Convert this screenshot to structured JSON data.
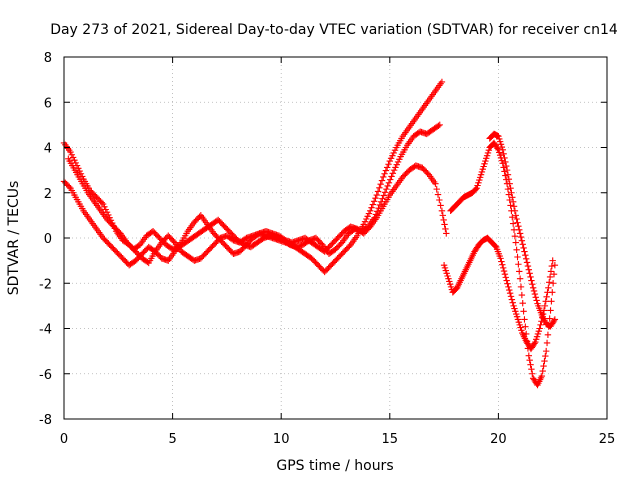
{
  "chart_data": {
    "type": "scatter",
    "title": "Day 273 of 2021, Sidereal Day-to-day VTEC variation (SDTVAR) for receiver cn14",
    "xlabel": "GPS time / hours",
    "ylabel": "SDTVAR / TECUs",
    "xlim": [
      0,
      25
    ],
    "ylim": [
      -8,
      8
    ],
    "xticks": [
      0,
      5,
      10,
      15,
      20,
      25
    ],
    "yticks": [
      -8,
      -6,
      -4,
      -2,
      0,
      2,
      4,
      6,
      8
    ],
    "xtick_labels": [
      "0",
      "5",
      "10",
      "15",
      "20",
      "25"
    ],
    "ytick_labels": [
      "-8",
      "-6",
      "-4",
      "-2",
      "0",
      "2",
      "4",
      "6",
      "8"
    ],
    "grid": true,
    "marker": "+",
    "color": "#ff0000",
    "series": [
      {
        "x": [
          0.0,
          0.3,
          0.6,
          0.9,
          1.2,
          1.5,
          1.8,
          2.1,
          2.4,
          2.7,
          3.0,
          3.3,
          3.6,
          3.9,
          4.2,
          4.5,
          4.8,
          5.1,
          5.4,
          5.7,
          6.0,
          6.3,
          6.6,
          6.9,
          7.2,
          7.5,
          7.8,
          8.1,
          8.4,
          8.7,
          9.0,
          9.3,
          9.6,
          9.9,
          10.2,
          10.5,
          10.8,
          11.1,
          11.4,
          11.7,
          12.0,
          12.3,
          12.6,
          12.9,
          13.2,
          13.5,
          13.8,
          14.1,
          14.4,
          14.7,
          15.0,
          15.3,
          15.6,
          15.9,
          16.2,
          16.5,
          16.8,
          17.1,
          17.4
        ],
        "y": [
          4.2,
          3.8,
          3.2,
          2.6,
          2.1,
          1.8,
          1.5,
          0.9,
          0.3,
          -0.1,
          -0.3,
          -0.6,
          -0.9,
          -1.1,
          -0.6,
          -0.2,
          0.1,
          -0.2,
          -0.6,
          -0.8,
          -1.0,
          -0.9,
          -0.6,
          -0.3,
          0.0,
          0.1,
          -0.1,
          -0.2,
          0.0,
          0.1,
          0.2,
          0.1,
          0.0,
          -0.1,
          -0.2,
          -0.3,
          -0.5,
          -0.7,
          -0.9,
          -1.2,
          -1.5,
          -1.2,
          -0.9,
          -0.6,
          -0.3,
          0.1,
          0.6,
          1.2,
          1.9,
          2.7,
          3.4,
          4.0,
          4.5,
          4.9,
          5.3,
          5.7,
          6.1,
          6.5,
          6.9
        ]
      },
      {
        "x": [
          0.0,
          0.3,
          0.6,
          0.9,
          1.2,
          1.5,
          1.8,
          2.1,
          2.4,
          2.7,
          3.0,
          3.3,
          3.6,
          3.9,
          4.2,
          4.5,
          4.8,
          5.1,
          5.4,
          5.7,
          6.0,
          6.3,
          6.6,
          6.9,
          7.2,
          7.5,
          7.8,
          8.1,
          8.4,
          8.7,
          9.0,
          9.3,
          9.6,
          9.9,
          10.2,
          10.5,
          10.8,
          11.1,
          11.4,
          11.7,
          12.0,
          12.3,
          12.6,
          12.9,
          13.2,
          13.5,
          13.8,
          14.1,
          14.4,
          14.7,
          15.0,
          15.3,
          15.6,
          15.9,
          16.2,
          16.5,
          16.8,
          17.1,
          17.4,
          17.6
        ],
        "y": [
          2.5,
          2.2,
          1.7,
          1.2,
          0.8,
          0.4,
          0.0,
          -0.3,
          -0.6,
          -0.9,
          -1.2,
          -1.0,
          -0.7,
          -0.4,
          -0.6,
          -0.9,
          -1.0,
          -0.6,
          -0.2,
          0.3,
          0.7,
          1.0,
          0.6,
          0.2,
          -0.1,
          -0.4,
          -0.7,
          -0.6,
          -0.3,
          0.0,
          0.2,
          0.3,
          0.2,
          0.1,
          -0.1,
          -0.2,
          -0.1,
          0.0,
          -0.2,
          -0.4,
          -0.6,
          -0.3,
          0.0,
          0.3,
          0.5,
          0.4,
          0.2,
          0.5,
          0.9,
          1.4,
          1.9,
          2.3,
          2.7,
          3.0,
          3.2,
          3.1,
          2.8,
          2.4,
          1.2,
          0.2
        ]
      },
      {
        "x": [
          0.2,
          0.5,
          0.8,
          1.1,
          1.4,
          1.7,
          2.0,
          2.3,
          2.6,
          2.9,
          3.2,
          3.5,
          3.8,
          4.1,
          4.4,
          4.7,
          5.0,
          5.3,
          5.6,
          5.9,
          6.2,
          6.5,
          6.8,
          7.1,
          7.4,
          7.7,
          8.0,
          8.3,
          8.6,
          8.9,
          9.2,
          9.5,
          9.8,
          10.1,
          10.4,
          10.7,
          11.0,
          11.3,
          11.6,
          11.9,
          12.2,
          12.5,
          12.8,
          13.1,
          13.4,
          13.7,
          14.0,
          14.3,
          14.6,
          14.9,
          15.2,
          15.5,
          15.8,
          16.1,
          16.4,
          16.7,
          17.0,
          17.3
        ],
        "y": [
          3.5,
          3.0,
          2.5,
          2.0,
          1.6,
          1.2,
          0.8,
          0.5,
          0.2,
          -0.2,
          -0.5,
          -0.3,
          0.1,
          0.3,
          0.0,
          -0.3,
          -0.5,
          -0.4,
          -0.2,
          0.0,
          0.2,
          0.4,
          0.6,
          0.8,
          0.5,
          0.2,
          -0.1,
          -0.3,
          -0.4,
          -0.2,
          0.0,
          0.1,
          0.0,
          -0.1,
          -0.3,
          -0.4,
          -0.3,
          -0.1,
          0.0,
          -0.3,
          -0.7,
          -0.5,
          -0.2,
          0.2,
          0.4,
          0.3,
          0.5,
          0.9,
          1.6,
          2.3,
          3.0,
          3.6,
          4.1,
          4.5,
          4.7,
          4.6,
          4.8,
          5.0
        ]
      },
      {
        "x": [
          17.5,
          17.7,
          17.9,
          18.1,
          18.3,
          18.5,
          18.7,
          18.9,
          19.1,
          19.3,
          19.5,
          19.7,
          19.9,
          20.1,
          20.3,
          20.5,
          20.7,
          20.9,
          21.1,
          21.3,
          21.5,
          21.7,
          21.9,
          22.1,
          22.3,
          22.5
        ],
        "y": [
          -1.2,
          -1.8,
          -2.4,
          -2.2,
          -1.8,
          -1.4,
          -1.0,
          -0.6,
          -0.3,
          -0.1,
          0.0,
          -0.2,
          -0.4,
          -0.9,
          -1.6,
          -2.3,
          -3.0,
          -3.6,
          -4.2,
          -4.6,
          -4.9,
          -4.6,
          -4.0,
          -3.2,
          -2.2,
          -1.0
        ]
      },
      {
        "x": [
          17.8,
          18.0,
          18.2,
          18.4,
          18.6,
          18.8,
          19.0,
          19.2,
          19.4,
          19.6,
          19.8,
          20.0,
          20.2,
          20.4,
          20.6,
          20.8,
          21.0,
          21.2,
          21.4,
          21.6,
          21.8,
          22.0,
          22.2,
          22.4,
          22.6
        ],
        "y": [
          1.2,
          1.4,
          1.6,
          1.8,
          1.9,
          2.0,
          2.2,
          2.8,
          3.4,
          4.0,
          4.2,
          3.9,
          3.3,
          2.4,
          1.2,
          -0.2,
          -1.8,
          -3.6,
          -5.2,
          -6.2,
          -6.5,
          -6.1,
          -5.0,
          -3.2,
          -1.2
        ]
      },
      {
        "x": [
          19.6,
          19.8,
          20.0,
          20.2,
          20.4,
          20.6,
          20.8,
          21.0,
          21.2,
          21.4,
          21.6,
          21.8,
          22.0,
          22.2,
          22.4,
          22.6
        ],
        "y": [
          4.4,
          4.6,
          4.5,
          3.9,
          3.0,
          2.0,
          1.0,
          0.2,
          -0.6,
          -1.4,
          -2.2,
          -2.9,
          -3.4,
          -3.8,
          -3.9,
          -3.6
        ]
      }
    ]
  }
}
